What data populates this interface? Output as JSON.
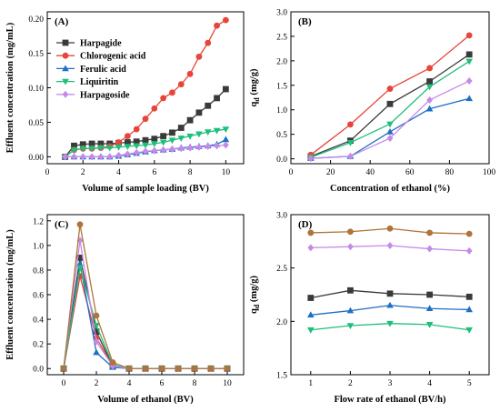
{
  "colors": {
    "black": "#3a3a3a",
    "red": "#e8443a",
    "blue": "#1f6fc5",
    "green": "#1fbf7a",
    "purple": "#c58ae8",
    "brown": "#b0743a"
  },
  "chart_data": [
    {
      "id": "A",
      "type": "line",
      "panel_label": "(A)",
      "xlabel": "Volume of sample loading (BV)",
      "ylabel": "Effluent concentration (mg/mL)",
      "xlim": [
        0,
        11
      ],
      "ylim": [
        -0.01,
        0.21
      ],
      "xticks": [
        0,
        2,
        4,
        6,
        8,
        10
      ],
      "yticks": [
        0.0,
        0.05,
        0.1,
        0.15,
        0.2
      ],
      "ytick_labels": [
        "0.00",
        "0.05",
        "0.10",
        "0.15",
        "0.20"
      ],
      "legend": "top-left",
      "series": [
        {
          "name": "Harpagide",
          "color_key": "black",
          "marker": "square",
          "x": [
            1,
            1.5,
            2,
            2.5,
            3,
            3.5,
            4,
            4.5,
            5,
            5.5,
            6,
            6.5,
            7,
            7.5,
            8,
            8.5,
            9,
            9.5,
            10
          ],
          "y": [
            0,
            0.016,
            0.018,
            0.019,
            0.019,
            0.019,
            0.02,
            0.021,
            0.022,
            0.024,
            0.026,
            0.03,
            0.035,
            0.042,
            0.053,
            0.064,
            0.074,
            0.085,
            0.098
          ]
        },
        {
          "name": "Chlorogenic acid",
          "color_key": "red",
          "marker": "circle",
          "x": [
            1,
            1.5,
            2,
            2.5,
            3,
            3.5,
            4,
            4.5,
            5,
            5.5,
            6,
            6.5,
            7,
            7.5,
            8,
            8.5,
            9,
            9.5,
            10
          ],
          "y": [
            0,
            0.01,
            0.012,
            0.012,
            0.013,
            0.015,
            0.021,
            0.03,
            0.04,
            0.055,
            0.07,
            0.085,
            0.093,
            0.105,
            0.12,
            0.145,
            0.165,
            0.19,
            0.198
          ]
        },
        {
          "name": "Ferulic acid",
          "color_key": "blue",
          "marker": "triangle-up",
          "x": [
            1,
            1.5,
            2,
            2.5,
            3,
            3.5,
            4,
            4.5,
            5,
            5.5,
            6,
            6.5,
            7,
            7.5,
            8,
            8.5,
            9,
            9.5,
            10
          ],
          "y": [
            0,
            0,
            0,
            0,
            0,
            0,
            0.001,
            0.003,
            0.005,
            0.007,
            0.009,
            0.01,
            0.011,
            0.013,
            0.014,
            0.015,
            0.016,
            0.018,
            0.025
          ]
        },
        {
          "name": "Liquiritin",
          "color_key": "green",
          "marker": "triangle-down",
          "x": [
            1,
            1.5,
            2,
            2.5,
            3,
            3.5,
            4,
            4.5,
            5,
            5.5,
            6,
            6.5,
            7,
            7.5,
            8,
            8.5,
            9,
            9.5,
            10
          ],
          "y": [
            0,
            0.01,
            0.012,
            0.012,
            0.013,
            0.013,
            0.014,
            0.015,
            0.016,
            0.017,
            0.019,
            0.021,
            0.024,
            0.027,
            0.03,
            0.033,
            0.036,
            0.038,
            0.04
          ]
        },
        {
          "name": "Harpagoside",
          "color_key": "purple",
          "marker": "diamond",
          "x": [
            1,
            1.5,
            2,
            2.5,
            3,
            3.5,
            4,
            4.5,
            5,
            5.5,
            6,
            6.5,
            7,
            7.5,
            8,
            8.5,
            9,
            9.5,
            10
          ],
          "y": [
            0,
            0,
            0,
            0,
            0,
            0,
            0.002,
            0.004,
            0.006,
            0.008,
            0.009,
            0.01,
            0.011,
            0.012,
            0.013,
            0.014,
            0.015,
            0.016,
            0.017
          ]
        }
      ]
    },
    {
      "id": "B",
      "type": "line",
      "panel_label": "(B)",
      "xlabel": "Concentration of ethanol (%)",
      "ylabel": "qd (mg/g)",
      "xlim": [
        0,
        100
      ],
      "ylim": [
        -0.1,
        3.0
      ],
      "xticks": [
        0,
        20,
        40,
        60,
        80,
        100
      ],
      "yticks": [
        0.0,
        0.5,
        1.0,
        1.5,
        2.0,
        2.5,
        3.0
      ],
      "ytick_labels": [
        "0.0",
        "0.5",
        "1.0",
        "1.5",
        "2.0",
        "2.5",
        "3.0"
      ],
      "series": [
        {
          "color_key": "black",
          "marker": "square",
          "x": [
            10,
            30,
            50,
            70,
            90
          ],
          "y": [
            0.05,
            0.37,
            1.12,
            1.58,
            2.13
          ]
        },
        {
          "color_key": "red",
          "marker": "circle",
          "x": [
            10,
            30,
            50,
            70,
            90
          ],
          "y": [
            0.08,
            0.7,
            1.43,
            1.85,
            2.52
          ]
        },
        {
          "color_key": "blue",
          "marker": "triangle-up",
          "x": [
            10,
            30,
            50,
            70,
            90
          ],
          "y": [
            0.01,
            0.05,
            0.55,
            1.02,
            1.23
          ]
        },
        {
          "color_key": "green",
          "marker": "triangle-down",
          "x": [
            10,
            30,
            50,
            70,
            90
          ],
          "y": [
            0.03,
            0.33,
            0.71,
            1.47,
            1.99
          ]
        },
        {
          "color_key": "purple",
          "marker": "diamond",
          "x": [
            10,
            30,
            50,
            70,
            90
          ],
          "y": [
            0.01,
            0.05,
            0.42,
            1.2,
            1.59
          ]
        }
      ]
    },
    {
      "id": "C",
      "type": "line",
      "panel_label": "(C)",
      "xlabel": "Volume of ethanol (BV)",
      "ylabel": "Effluent concentration (mg/mL)",
      "xlim": [
        -1,
        11
      ],
      "ylim": [
        -0.05,
        1.25
      ],
      "xticks": [
        0,
        2,
        4,
        6,
        8,
        10
      ],
      "yticks": [
        0.0,
        0.2,
        0.4,
        0.6,
        0.8,
        1.0,
        1.2
      ],
      "ytick_labels": [
        "0.0",
        "0.2",
        "0.4",
        "0.6",
        "0.8",
        "1.0",
        "1.2"
      ],
      "series": [
        {
          "color_key": "black",
          "marker": "square",
          "x": [
            0,
            1,
            2,
            3,
            4,
            5,
            6,
            7,
            8,
            9,
            10
          ],
          "y": [
            0,
            0.9,
            0.3,
            0.02,
            0,
            0,
            0,
            0,
            0,
            0,
            0
          ]
        },
        {
          "color_key": "red",
          "marker": "circle",
          "x": [
            0,
            1,
            2,
            3,
            4,
            5,
            6,
            7,
            8,
            9,
            10
          ],
          "y": [
            0,
            0.75,
            0.25,
            0.02,
            0,
            0,
            0,
            0,
            0,
            0,
            0
          ]
        },
        {
          "color_key": "blue",
          "marker": "triangle-up",
          "x": [
            0,
            1,
            2,
            3,
            4,
            5,
            6,
            7,
            8,
            9,
            10
          ],
          "y": [
            0,
            0.85,
            0.13,
            0.01,
            0,
            0,
            0,
            0,
            0,
            0,
            0
          ]
        },
        {
          "color_key": "green",
          "marker": "triangle-down",
          "x": [
            0,
            1,
            2,
            3,
            4,
            5,
            6,
            7,
            8,
            9,
            10
          ],
          "y": [
            0,
            0.82,
            0.35,
            0.03,
            0,
            0,
            0,
            0,
            0,
            0,
            0
          ]
        },
        {
          "color_key": "purple",
          "marker": "diamond",
          "x": [
            0,
            1,
            2,
            3,
            4,
            5,
            6,
            7,
            8,
            9,
            10
          ],
          "y": [
            0,
            1.04,
            0.22,
            0.02,
            0,
            0,
            0,
            0,
            0,
            0,
            0
          ]
        },
        {
          "color_key": "brown",
          "marker": "circle",
          "x": [
            0,
            1,
            2,
            3,
            4,
            5,
            6,
            7,
            8,
            9,
            10
          ],
          "y": [
            0,
            1.17,
            0.43,
            0.05,
            0,
            0,
            0,
            0,
            0,
            0,
            0
          ]
        }
      ]
    },
    {
      "id": "D",
      "type": "line",
      "panel_label": "(D)",
      "xlabel": "Flow rate of ethanol (BV/h)",
      "ylabel": "qd (mg/g)",
      "xlim": [
        0.5,
        5.5
      ],
      "ylim": [
        1.5,
        3.0
      ],
      "xticks": [
        1,
        2,
        3,
        4,
        5
      ],
      "yticks": [
        1.5,
        2.0,
        2.5,
        3.0
      ],
      "ytick_labels": [
        "1.5",
        "2.0",
        "2.5",
        "3.0"
      ],
      "series": [
        {
          "color_key": "brown",
          "marker": "circle",
          "x": [
            1,
            2,
            3,
            4,
            5
          ],
          "y": [
            2.83,
            2.84,
            2.87,
            2.83,
            2.82
          ]
        },
        {
          "color_key": "purple",
          "marker": "diamond",
          "x": [
            1,
            2,
            3,
            4,
            5
          ],
          "y": [
            2.69,
            2.7,
            2.71,
            2.68,
            2.66
          ]
        },
        {
          "color_key": "black",
          "marker": "square",
          "x": [
            1,
            2,
            3,
            4,
            5
          ],
          "y": [
            2.22,
            2.29,
            2.26,
            2.25,
            2.23
          ]
        },
        {
          "color_key": "blue",
          "marker": "triangle-up",
          "x": [
            1,
            2,
            3,
            4,
            5
          ],
          "y": [
            2.06,
            2.1,
            2.15,
            2.12,
            2.11
          ]
        },
        {
          "color_key": "green",
          "marker": "triangle-down",
          "x": [
            1,
            2,
            3,
            4,
            5
          ],
          "y": [
            1.92,
            1.96,
            1.98,
            1.97,
            1.92
          ]
        }
      ]
    }
  ]
}
